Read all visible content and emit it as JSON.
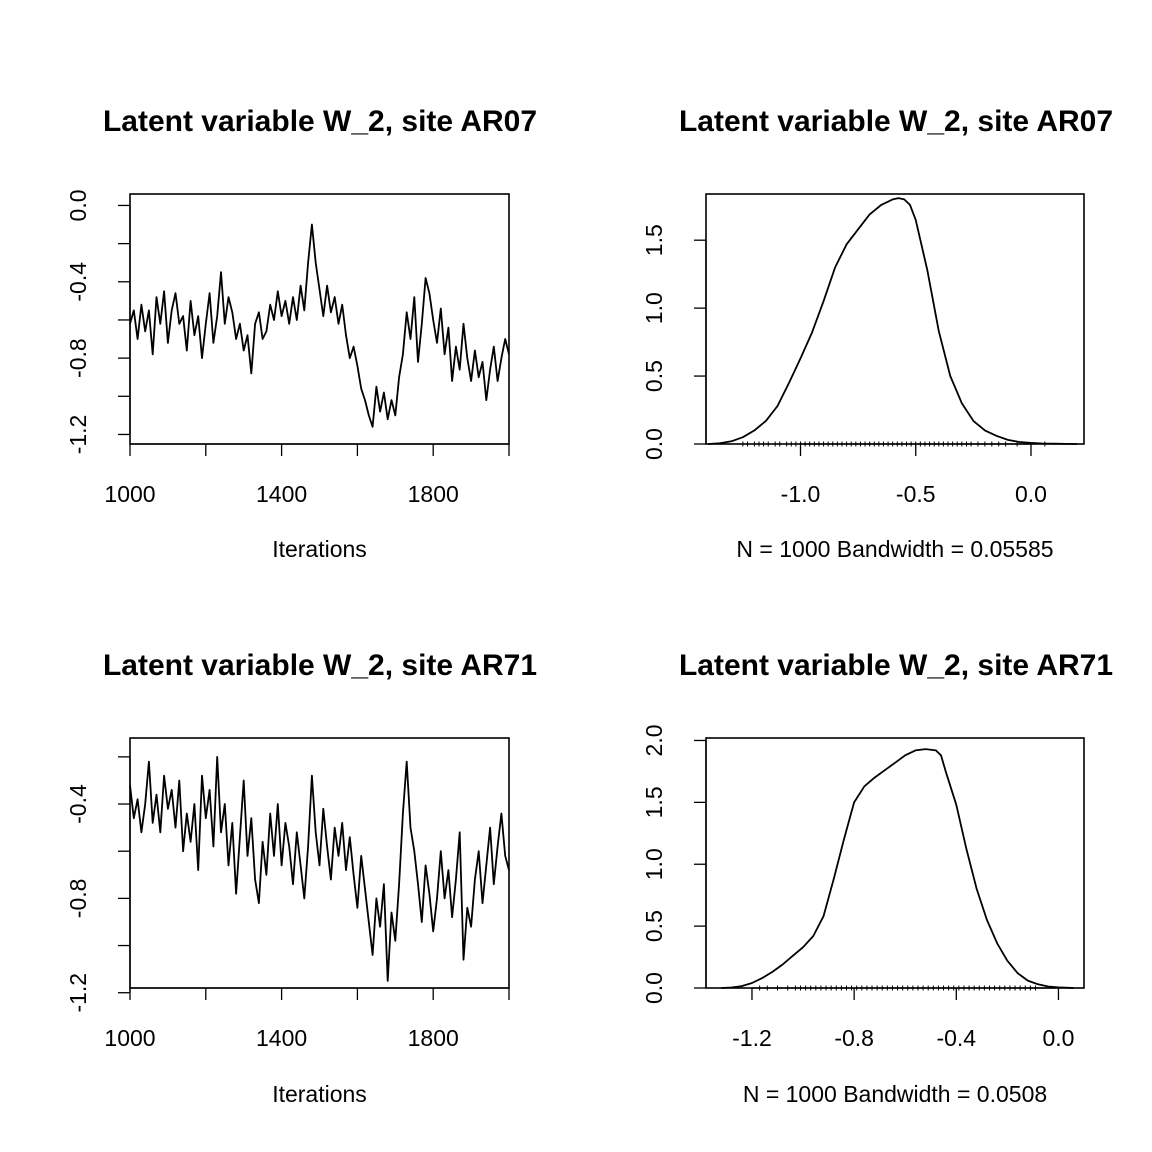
{
  "chart_data": [
    {
      "type": "line",
      "panel": "trace",
      "title": "Latent variable W_2, site AR07",
      "xlabel": "Iterations",
      "ylabel": "",
      "xlim": [
        1000,
        2000
      ],
      "ylim": [
        -1.25,
        0.06
      ],
      "x_ticks": [
        1000,
        1200,
        1400,
        1600,
        1800,
        2000
      ],
      "x_tick_labels": [
        "1000",
        "",
        "1400",
        "",
        "1800",
        ""
      ],
      "y_ticks": [
        -1.2,
        -1.0,
        -0.8,
        -0.6,
        -0.4,
        -0.2,
        0.0
      ],
      "y_tick_labels": [
        "-1.2",
        "",
        "-0.8",
        "",
        "-0.4",
        "",
        "0.0"
      ],
      "series": [
        {
          "name": "W_2 AR07 trace",
          "x": [
            1000,
            1010,
            1020,
            1030,
            1040,
            1050,
            1060,
            1070,
            1080,
            1090,
            1100,
            1110,
            1120,
            1130,
            1140,
            1150,
            1160,
            1170,
            1180,
            1190,
            1200,
            1210,
            1220,
            1230,
            1240,
            1250,
            1260,
            1270,
            1280,
            1290,
            1300,
            1310,
            1320,
            1330,
            1340,
            1350,
            1360,
            1370,
            1380,
            1390,
            1400,
            1410,
            1420,
            1430,
            1440,
            1450,
            1460,
            1470,
            1480,
            1490,
            1500,
            1510,
            1520,
            1530,
            1540,
            1550,
            1560,
            1570,
            1580,
            1590,
            1600,
            1610,
            1620,
            1630,
            1640,
            1650,
            1660,
            1670,
            1680,
            1690,
            1700,
            1710,
            1720,
            1730,
            1740,
            1750,
            1760,
            1770,
            1780,
            1790,
            1800,
            1810,
            1820,
            1830,
            1840,
            1850,
            1860,
            1870,
            1880,
            1890,
            1900,
            1910,
            1920,
            1930,
            1940,
            1950,
            1960,
            1970,
            1980,
            1990,
            2000
          ],
          "values": [
            -0.62,
            -0.55,
            -0.7,
            -0.52,
            -0.66,
            -0.55,
            -0.78,
            -0.48,
            -0.62,
            -0.45,
            -0.72,
            -0.55,
            -0.46,
            -0.62,
            -0.58,
            -0.76,
            -0.5,
            -0.68,
            -0.58,
            -0.8,
            -0.62,
            -0.46,
            -0.72,
            -0.58,
            -0.35,
            -0.62,
            -0.48,
            -0.56,
            -0.7,
            -0.62,
            -0.76,
            -0.68,
            -0.88,
            -0.62,
            -0.56,
            -0.7,
            -0.66,
            -0.52,
            -0.6,
            -0.45,
            -0.58,
            -0.5,
            -0.62,
            -0.48,
            -0.6,
            -0.42,
            -0.55,
            -0.3,
            -0.1,
            -0.3,
            -0.44,
            -0.58,
            -0.42,
            -0.56,
            -0.48,
            -0.62,
            -0.52,
            -0.68,
            -0.8,
            -0.74,
            -0.84,
            -0.96,
            -1.02,
            -1.1,
            -1.16,
            -0.95,
            -1.08,
            -0.98,
            -1.12,
            -1.02,
            -1.1,
            -0.9,
            -0.78,
            -0.56,
            -0.7,
            -0.48,
            -0.82,
            -0.62,
            -0.38,
            -0.46,
            -0.6,
            -0.72,
            -0.54,
            -0.78,
            -0.64,
            -0.92,
            -0.74,
            -0.86,
            -0.62,
            -0.8,
            -0.92,
            -0.76,
            -0.9,
            -0.82,
            -1.02,
            -0.86,
            -0.74,
            -0.92,
            -0.8,
            -0.7,
            -0.78
          ]
        }
      ]
    },
    {
      "type": "area",
      "panel": "density",
      "title": "Latent variable W_2, site AR07",
      "xlabel": "N = 1000   Bandwidth = 0.05585",
      "ylabel": "",
      "xlim": [
        -1.41,
        0.23
      ],
      "ylim": [
        0,
        1.84
      ],
      "x_ticks": [
        -1.0,
        -0.5,
        0.0
      ],
      "x_tick_labels": [
        "-1.0",
        "-0.5",
        "0.0"
      ],
      "y_ticks": [
        0.0,
        0.5,
        1.0,
        1.5
      ],
      "y_tick_labels": [
        "0.0",
        "0.5",
        "1.0",
        "1.5"
      ],
      "series": [
        {
          "name": "density",
          "x": [
            -1.4,
            -1.35,
            -1.3,
            -1.25,
            -1.2,
            -1.15,
            -1.1,
            -1.05,
            -1.0,
            -0.95,
            -0.9,
            -0.85,
            -0.8,
            -0.75,
            -0.7,
            -0.65,
            -0.6,
            -0.575,
            -0.55,
            -0.525,
            -0.5,
            -0.45,
            -0.4,
            -0.35,
            -0.3,
            -0.25,
            -0.2,
            -0.15,
            -0.1,
            -0.05,
            0.0,
            0.05,
            0.1,
            0.15,
            0.2
          ],
          "values": [
            0.0,
            0.005,
            0.02,
            0.05,
            0.1,
            0.17,
            0.28,
            0.45,
            0.63,
            0.82,
            1.05,
            1.3,
            1.47,
            1.58,
            1.69,
            1.76,
            1.8,
            1.81,
            1.8,
            1.76,
            1.65,
            1.28,
            0.83,
            0.5,
            0.3,
            0.17,
            0.1,
            0.06,
            0.03,
            0.015,
            0.008,
            0.004,
            0.002,
            0.001,
            0.0
          ]
        }
      ],
      "rug": [
        -1.25,
        -1.23,
        -1.2,
        -1.18,
        -1.16,
        -1.14,
        -1.11,
        -1.09,
        -1.06,
        -1.04,
        -1.02,
        -1.0,
        -0.98,
        -0.96,
        -0.94,
        -0.92,
        -0.9,
        -0.88,
        -0.86,
        -0.84,
        -0.82,
        -0.8,
        -0.78,
        -0.76,
        -0.74,
        -0.72,
        -0.7,
        -0.68,
        -0.66,
        -0.64,
        -0.62,
        -0.6,
        -0.58,
        -0.56,
        -0.54,
        -0.52,
        -0.5,
        -0.48,
        -0.46,
        -0.44,
        -0.42,
        -0.4,
        -0.38,
        -0.36,
        -0.34,
        -0.32,
        -0.3,
        -0.28,
        -0.26,
        -0.23,
        -0.2,
        -0.17,
        -0.14,
        -0.11,
        -0.06,
        0.06
      ]
    },
    {
      "type": "line",
      "panel": "trace",
      "title": "Latent variable W_2, site AR71",
      "xlabel": "Iterations",
      "ylabel": "",
      "xlim": [
        1000,
        2000
      ],
      "ylim": [
        -1.18,
        -0.12
      ],
      "x_ticks": [
        1000,
        1200,
        1400,
        1600,
        1800,
        2000
      ],
      "x_tick_labels": [
        "1000",
        "",
        "1400",
        "",
        "1800",
        ""
      ],
      "y_ticks": [
        -1.2,
        -1.0,
        -0.8,
        -0.6,
        -0.4,
        -0.2
      ],
      "y_tick_labels": [
        "-1.2",
        "",
        "-0.8",
        "",
        "-0.4",
        ""
      ],
      "series": [
        {
          "name": "W_2 AR71 trace",
          "x": [
            1000,
            1010,
            1020,
            1030,
            1040,
            1050,
            1060,
            1070,
            1080,
            1090,
            1100,
            1110,
            1120,
            1130,
            1140,
            1150,
            1160,
            1170,
            1180,
            1190,
            1200,
            1210,
            1220,
            1230,
            1240,
            1250,
            1260,
            1270,
            1280,
            1290,
            1300,
            1310,
            1320,
            1330,
            1340,
            1350,
            1360,
            1370,
            1380,
            1390,
            1400,
            1410,
            1420,
            1430,
            1440,
            1450,
            1460,
            1470,
            1480,
            1490,
            1500,
            1510,
            1520,
            1530,
            1540,
            1550,
            1560,
            1570,
            1580,
            1590,
            1600,
            1610,
            1620,
            1630,
            1640,
            1650,
            1660,
            1670,
            1680,
            1690,
            1700,
            1710,
            1720,
            1730,
            1740,
            1750,
            1760,
            1770,
            1780,
            1790,
            1800,
            1810,
            1820,
            1830,
            1840,
            1850,
            1860,
            1870,
            1880,
            1890,
            1900,
            1910,
            1920,
            1930,
            1940,
            1950,
            1960,
            1970,
            1980,
            1990,
            2000
          ],
          "values": [
            -0.32,
            -0.46,
            -0.38,
            -0.52,
            -0.4,
            -0.22,
            -0.48,
            -0.36,
            -0.52,
            -0.28,
            -0.42,
            -0.34,
            -0.5,
            -0.3,
            -0.6,
            -0.44,
            -0.56,
            -0.4,
            -0.68,
            -0.28,
            -0.46,
            -0.34,
            -0.58,
            -0.2,
            -0.52,
            -0.4,
            -0.66,
            -0.48,
            -0.78,
            -0.54,
            -0.3,
            -0.62,
            -0.46,
            -0.72,
            -0.82,
            -0.56,
            -0.7,
            -0.44,
            -0.62,
            -0.4,
            -0.66,
            -0.48,
            -0.58,
            -0.74,
            -0.52,
            -0.66,
            -0.8,
            -0.58,
            -0.28,
            -0.52,
            -0.66,
            -0.42,
            -0.58,
            -0.72,
            -0.5,
            -0.62,
            -0.48,
            -0.68,
            -0.54,
            -0.7,
            -0.84,
            -0.62,
            -0.76,
            -0.9,
            -1.04,
            -0.8,
            -0.92,
            -0.74,
            -1.15,
            -0.86,
            -0.98,
            -0.74,
            -0.44,
            -0.22,
            -0.5,
            -0.6,
            -0.74,
            -0.9,
            -0.66,
            -0.78,
            -0.94,
            -0.8,
            -0.6,
            -0.8,
            -0.68,
            -0.88,
            -0.72,
            -0.52,
            -1.06,
            -0.84,
            -0.92,
            -0.72,
            -0.6,
            -0.82,
            -0.66,
            -0.5,
            -0.74,
            -0.58,
            -0.44,
            -0.62,
            -0.68
          ]
        }
      ]
    },
    {
      "type": "area",
      "panel": "density",
      "title": "Latent variable W_2, site AR71",
      "xlabel": "N = 1000   Bandwidth = 0.0508",
      "ylabel": "",
      "xlim": [
        -1.38,
        0.1
      ],
      "ylim": [
        0,
        2.02
      ],
      "x_ticks": [
        -1.2,
        -0.8,
        -0.4,
        0.0
      ],
      "x_tick_labels": [
        "-1.2",
        "-0.8",
        "-0.4",
        "0.0"
      ],
      "y_ticks": [
        0.0,
        0.5,
        1.0,
        1.5,
        2.0
      ],
      "y_tick_labels": [
        "0.0",
        "0.5",
        "1.0",
        "1.5",
        "2.0"
      ],
      "series": [
        {
          "name": "density",
          "x": [
            -1.32,
            -1.28,
            -1.24,
            -1.2,
            -1.16,
            -1.12,
            -1.08,
            -1.04,
            -1.0,
            -0.96,
            -0.92,
            -0.88,
            -0.84,
            -0.8,
            -0.76,
            -0.72,
            -0.68,
            -0.64,
            -0.6,
            -0.56,
            -0.52,
            -0.48,
            -0.46,
            -0.44,
            -0.4,
            -0.36,
            -0.32,
            -0.28,
            -0.24,
            -0.2,
            -0.16,
            -0.12,
            -0.08,
            -0.04,
            0.0,
            0.04,
            0.06
          ],
          "values": [
            0.0,
            0.004,
            0.015,
            0.04,
            0.08,
            0.13,
            0.19,
            0.26,
            0.33,
            0.42,
            0.58,
            0.88,
            1.2,
            1.5,
            1.63,
            1.7,
            1.76,
            1.82,
            1.88,
            1.92,
            1.93,
            1.92,
            1.88,
            1.74,
            1.48,
            1.12,
            0.8,
            0.55,
            0.36,
            0.22,
            0.12,
            0.06,
            0.03,
            0.012,
            0.005,
            0.002,
            0.0
          ]
        }
      ],
      "rug": [
        -1.17,
        -1.14,
        -1.1,
        -1.06,
        -1.03,
        -1.01,
        -0.99,
        -0.97,
        -0.95,
        -0.93,
        -0.91,
        -0.89,
        -0.87,
        -0.85,
        -0.83,
        -0.81,
        -0.79,
        -0.77,
        -0.75,
        -0.73,
        -0.71,
        -0.69,
        -0.67,
        -0.65,
        -0.63,
        -0.61,
        -0.59,
        -0.57,
        -0.55,
        -0.53,
        -0.51,
        -0.49,
        -0.47,
        -0.45,
        -0.43,
        -0.41,
        -0.39,
        -0.37,
        -0.35,
        -0.33,
        -0.31,
        -0.29,
        -0.27,
        -0.25,
        -0.23,
        -0.21,
        -0.19,
        -0.17,
        -0.15,
        -0.13,
        -0.11,
        -0.09
      ]
    }
  ]
}
